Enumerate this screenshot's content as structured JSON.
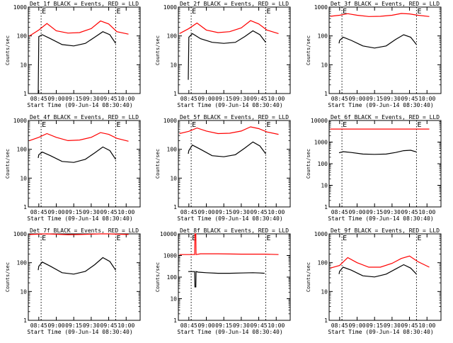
{
  "chart_data": [
    {
      "type": "line",
      "title": "Det 1f BLACK = Events, RED = LLD",
      "ylabel": "Counts/sec",
      "xlabel": "Start Time (09-Jun-14 08:30:40)",
      "yscale": "log",
      "yticks": [
        "1",
        "10",
        "100",
        "1000"
      ],
      "ylim": [
        1,
        1000
      ],
      "xticks": [
        "08:45",
        "09:00",
        "09:15",
        "09:30",
        "09:45",
        "10:00"
      ],
      "markers": [
        "08:47",
        "09:51"
      ],
      "marker_label": "E",
      "series": [
        {
          "color": "#ff0000",
          "t": [
            "08:37",
            "08:45",
            "08:52",
            "09:00",
            "09:10",
            "09:20",
            "09:30",
            "09:38",
            "09:45",
            "09:52",
            "10:02"
          ],
          "values": [
            100,
            160,
            270,
            150,
            125,
            130,
            180,
            330,
            260,
            140,
            115
          ]
        },
        {
          "color": "#000000",
          "t": [
            "08:44.5",
            "08:45",
            "08:48",
            "08:55",
            "09:05",
            "09:15",
            "09:25",
            "09:33",
            "09:40",
            "09:46",
            "09:51"
          ],
          "values": [
            1,
            95,
            110,
            80,
            50,
            45,
            55,
            90,
            140,
            110,
            55
          ]
        }
      ]
    },
    {
      "type": "line",
      "title": "Det 2f BLACK = Events, RED = LLD",
      "ylabel": "Counts/sec",
      "xlabel": "Start Time (09-Jun-14 08:30:40)",
      "yscale": "log",
      "yticks": [
        "1",
        "10",
        "100",
        "1000"
      ],
      "ylim": [
        1,
        1000
      ],
      "xticks": [
        "08:45",
        "09:00",
        "09:15",
        "09:30",
        "09:45",
        "10:00"
      ],
      "markers": [
        "08:47",
        "09:51"
      ],
      "marker_label": "E",
      "series": [
        {
          "color": "#ff0000",
          "t": [
            "08:37",
            "08:45",
            "08:52",
            "09:00",
            "09:10",
            "09:20",
            "09:30",
            "09:38",
            "09:45",
            "09:52",
            "10:02"
          ],
          "values": [
            120,
            180,
            280,
            160,
            130,
            140,
            190,
            340,
            260,
            160,
            120
          ]
        },
        {
          "color": "#000000",
          "t": [
            "08:44.5",
            "08:45",
            "08:48",
            "08:55",
            "09:05",
            "09:15",
            "09:25",
            "09:33",
            "09:40",
            "09:46",
            "09:51"
          ],
          "values": [
            3,
            90,
            120,
            80,
            60,
            55,
            60,
            95,
            150,
            110,
            60
          ]
        }
      ]
    },
    {
      "type": "line",
      "title": "Det 3f BLACK = Events, RED = LLD",
      "ylabel": "Counts/sec",
      "xlabel": "Start Time (09-Jun-14 08:30:40)",
      "yscale": "log",
      "yticks": [
        "1",
        "10",
        "100",
        "1000"
      ],
      "ylim": [
        1,
        1000
      ],
      "xticks": [
        "08:45",
        "09:00",
        "09:15",
        "09:30",
        "09:45",
        "10:00"
      ],
      "markers": [
        "08:47",
        "09:51"
      ],
      "marker_label": "E",
      "series": [
        {
          "color": "#ff0000",
          "t": [
            "08:37",
            "08:45",
            "08:52",
            "09:00",
            "09:10",
            "09:20",
            "09:30",
            "09:38",
            "09:45",
            "09:52",
            "10:02"
          ],
          "values": [
            480,
            520,
            590,
            520,
            470,
            480,
            520,
            600,
            580,
            520,
            470
          ]
        },
        {
          "color": "#000000",
          "t": [
            "08:44.5",
            "08:45",
            "08:48",
            "08:55",
            "09:05",
            "09:15",
            "09:25",
            "09:33",
            "09:40",
            "09:46",
            "09:51"
          ],
          "values": [
            55,
            70,
            90,
            70,
            45,
            38,
            45,
            75,
            110,
            90,
            50
          ]
        }
      ]
    },
    {
      "type": "line",
      "title": "Det 4f BLACK = Events, RED = LLD",
      "ylabel": "Counts/sec",
      "xlabel": "Start Time (09-Jun-14 08:30:40)",
      "yscale": "log",
      "yticks": [
        "1",
        "10",
        "100",
        "1000"
      ],
      "ylim": [
        1,
        1000
      ],
      "xticks": [
        "08:45",
        "09:00",
        "09:15",
        "09:30",
        "09:45",
        "10:00"
      ],
      "markers": [
        "08:47",
        "09:51"
      ],
      "marker_label": "E",
      "series": [
        {
          "color": "#ff0000",
          "t": [
            "08:37",
            "08:45",
            "08:52",
            "09:00",
            "09:10",
            "09:20",
            "09:30",
            "09:38",
            "09:45",
            "09:52",
            "10:02"
          ],
          "values": [
            200,
            260,
            350,
            260,
            200,
            210,
            260,
            380,
            330,
            240,
            190
          ]
        },
        {
          "color": "#000000",
          "t": [
            "08:44.5",
            "08:45",
            "08:48",
            "08:55",
            "09:05",
            "09:15",
            "09:25",
            "09:33",
            "09:40",
            "09:46",
            "09:51"
          ],
          "values": [
            50,
            65,
            80,
            60,
            38,
            35,
            45,
            75,
            120,
            90,
            45
          ]
        }
      ]
    },
    {
      "type": "line",
      "title": "Det 5f BLACK = Events, RED = LLD",
      "ylabel": "Counts/sec",
      "xlabel": "Start Time (09-Jun-14 08:30:40)",
      "yscale": "log",
      "yticks": [
        "1",
        "10",
        "100",
        "1000"
      ],
      "ylim": [
        1,
        1000
      ],
      "xticks": [
        "08:45",
        "09:00",
        "09:15",
        "09:30",
        "09:45",
        "10:00"
      ],
      "markers": [
        "08:47",
        "09:51"
      ],
      "marker_label": "E",
      "series": [
        {
          "color": "#ff0000",
          "t": [
            "08:37",
            "08:45",
            "08:52",
            "09:00",
            "09:10",
            "09:20",
            "09:30",
            "09:38",
            "09:45",
            "09:52",
            "10:02"
          ],
          "values": [
            350,
            420,
            550,
            430,
            350,
            360,
            430,
            600,
            520,
            400,
            330
          ]
        },
        {
          "color": "#000000",
          "t": [
            "08:44.5",
            "08:45",
            "08:48",
            "08:55",
            "09:05",
            "09:15",
            "09:25",
            "09:33",
            "09:40",
            "09:46",
            "09:51"
          ],
          "values": [
            70,
            90,
            140,
            100,
            60,
            55,
            65,
            110,
            180,
            130,
            70
          ]
        }
      ]
    },
    {
      "type": "line",
      "title": "Det 6f BLACK = Events, RED = LLD",
      "ylabel": "Counts/sec",
      "xlabel": "Start Time (09-Jun-14 08:30:40)",
      "yscale": "log",
      "yticks": [
        "1",
        "10",
        "100",
        "1000",
        "10000"
      ],
      "ylim": [
        1,
        10000
      ],
      "xticks": [
        "08:45",
        "09:00",
        "09:15",
        "09:30",
        "09:45",
        "10:00"
      ],
      "markers": [
        "08:47",
        "09:51"
      ],
      "marker_label": "E",
      "series": [
        {
          "color": "#ff0000",
          "t": [
            "08:37",
            "10:02"
          ],
          "values": [
            4000,
            4000
          ]
        },
        {
          "color": "#000000",
          "t": [
            "08:44.5",
            "08:48",
            "08:55",
            "09:05",
            "09:15",
            "09:25",
            "09:33",
            "09:40",
            "09:46",
            "09:51"
          ],
          "values": [
            320,
            360,
            330,
            280,
            270,
            280,
            330,
            400,
            420,
            350
          ]
        }
      ]
    },
    {
      "type": "line",
      "title": "Det 7f BLACK = Events, RED = LLD",
      "ylabel": "Counts/sec",
      "xlabel": "Start Time (09-Jun-14 08:30:40)",
      "yscale": "log",
      "yticks": [
        "1",
        "10",
        "100",
        "1000"
      ],
      "ylim": [
        1,
        1000
      ],
      "xticks": [
        "08:45",
        "09:00",
        "09:15",
        "09:30",
        "09:45",
        "10:00"
      ],
      "markers": [
        "08:47",
        "09:51"
      ],
      "marker_label": "E",
      "series": [
        {
          "color": "#ff0000",
          "t": [
            "08:37",
            "08:45",
            "08:52",
            "09:00",
            "09:10",
            "09:20",
            "09:30",
            "09:38",
            "09:45",
            "09:52",
            "10:02"
          ],
          "values": [
            950,
            980,
            1000,
            970,
            940,
            950,
            980,
            1000,
            1000,
            980,
            950
          ]
        },
        {
          "color": "#000000",
          "t": [
            "08:44.5",
            "08:45",
            "08:48",
            "08:55",
            "09:05",
            "09:15",
            "09:25",
            "09:33",
            "09:40",
            "09:46",
            "09:51"
          ],
          "values": [
            55,
            75,
            105,
            75,
            45,
            40,
            50,
            85,
            150,
            110,
            55
          ]
        }
      ]
    },
    {
      "type": "line",
      "title": "Det 8f BLACK = Events, RED = LLD",
      "ylabel": "Counts/sec",
      "xlabel": "Start Time (09-Jun-14 08:30:40)",
      "yscale": "log",
      "yticks": [
        "1",
        "10",
        "100",
        "1000",
        "10000"
      ],
      "ylim": [
        1,
        10000
      ],
      "xticks": [
        "08:45",
        "09:00",
        "09:15",
        "09:30",
        "09:45",
        "10:00"
      ],
      "markers": [
        "08:47",
        "09:51"
      ],
      "marker_label": "E",
      "series": [
        {
          "color": "#ff0000",
          "t": [
            "08:37",
            "08:50",
            "08:50.2",
            "08:51",
            "08:51.2",
            "08:55",
            "09:10",
            "09:30",
            "09:50",
            "10:02"
          ],
          "values": [
            1100,
            1100,
            10000,
            10000,
            1100,
            1200,
            1200,
            1150,
            1150,
            1100
          ]
        },
        {
          "color": "#000000",
          "t": [
            "08:44.5",
            "08:48",
            "08:50",
            "08:50.2",
            "08:51",
            "08:51.2",
            "08:53",
            "09:00",
            "09:10",
            "09:20",
            "09:30",
            "09:40",
            "09:46",
            "09:50"
          ],
          "values": [
            180,
            180,
            180,
            35,
            35,
            180,
            170,
            160,
            150,
            150,
            155,
            160,
            155,
            150
          ]
        }
      ]
    },
    {
      "type": "line",
      "title": "Det 9f BLACK = Events, RED = LLD",
      "ylabel": "Counts/sec",
      "xlabel": "Start Time (09-Jun-14 08:30:40)",
      "yscale": "log",
      "yticks": [
        "1",
        "10",
        "100",
        "1000"
      ],
      "ylim": [
        1,
        1000
      ],
      "xticks": [
        "08:45",
        "09:00",
        "09:15",
        "09:30",
        "09:45",
        "10:00"
      ],
      "markers": [
        "08:47",
        "09:51"
      ],
      "marker_label": "E",
      "series": [
        {
          "color": "#ff0000",
          "t": [
            "08:37",
            "08:45",
            "08:52",
            "09:00",
            "09:10",
            "09:20",
            "09:30",
            "09:38",
            "09:45",
            "09:52",
            "10:02"
          ],
          "values": [
            65,
            80,
            150,
            100,
            70,
            70,
            95,
            140,
            170,
            110,
            70
          ]
        },
        {
          "color": "#000000",
          "t": [
            "08:44.5",
            "08:45",
            "08:48",
            "08:55",
            "09:05",
            "09:15",
            "09:25",
            "09:33",
            "09:40",
            "09:46",
            "09:51"
          ],
          "values": [
            40,
            50,
            70,
            55,
            35,
            32,
            40,
            60,
            85,
            65,
            40
          ]
        }
      ]
    }
  ]
}
